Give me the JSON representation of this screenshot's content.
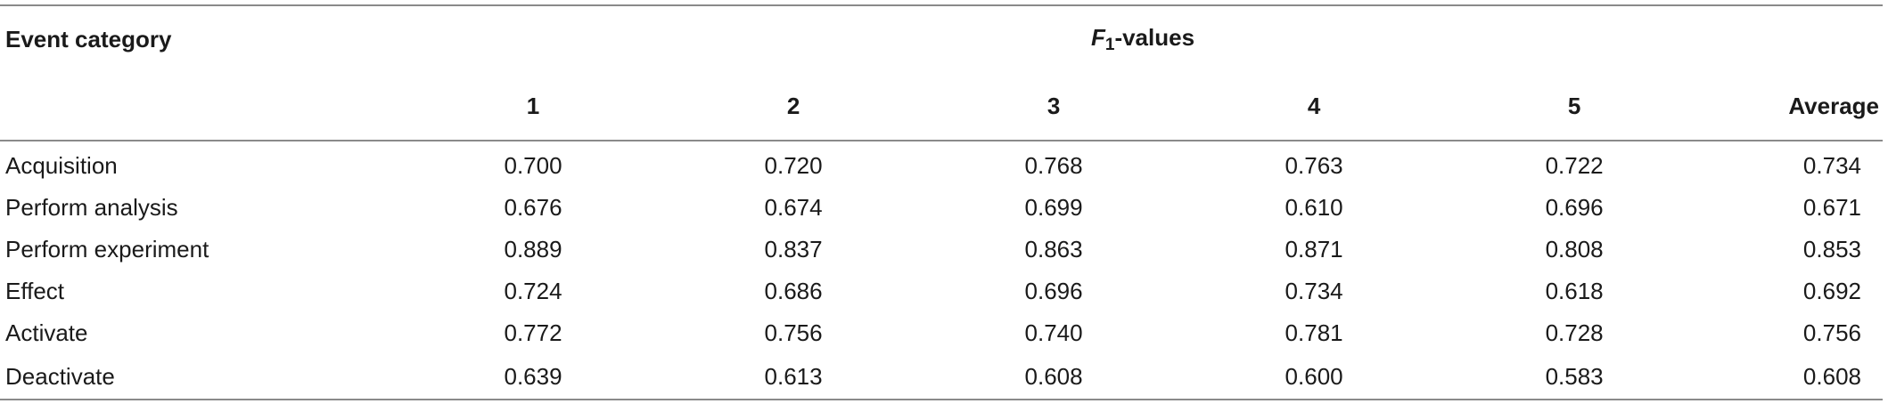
{
  "table": {
    "row_header": "Event category",
    "group_header": {
      "symbol": "F",
      "subscript": "1",
      "suffix": "-values"
    },
    "columns": [
      "1",
      "2",
      "3",
      "4",
      "5",
      "Average"
    ],
    "rows": [
      {
        "category": "Acquisition",
        "values": [
          "0.700",
          "0.720",
          "0.768",
          "0.763",
          "0.722",
          "0.734"
        ]
      },
      {
        "category": "Perform analysis",
        "values": [
          "0.676",
          "0.674",
          "0.699",
          "0.610",
          "0.696",
          "0.671"
        ]
      },
      {
        "category": "Perform experiment",
        "values": [
          "0.889",
          "0.837",
          "0.863",
          "0.871",
          "0.808",
          "0.853"
        ]
      },
      {
        "category": "Effect",
        "values": [
          "0.724",
          "0.686",
          "0.696",
          "0.734",
          "0.618",
          "0.692"
        ]
      },
      {
        "category": "Activate",
        "values": [
          "0.772",
          "0.756",
          "0.740",
          "0.781",
          "0.728",
          "0.756"
        ]
      },
      {
        "category": "Deactivate",
        "values": [
          "0.639",
          "0.613",
          "0.608",
          "0.600",
          "0.583",
          "0.608"
        ]
      }
    ]
  }
}
